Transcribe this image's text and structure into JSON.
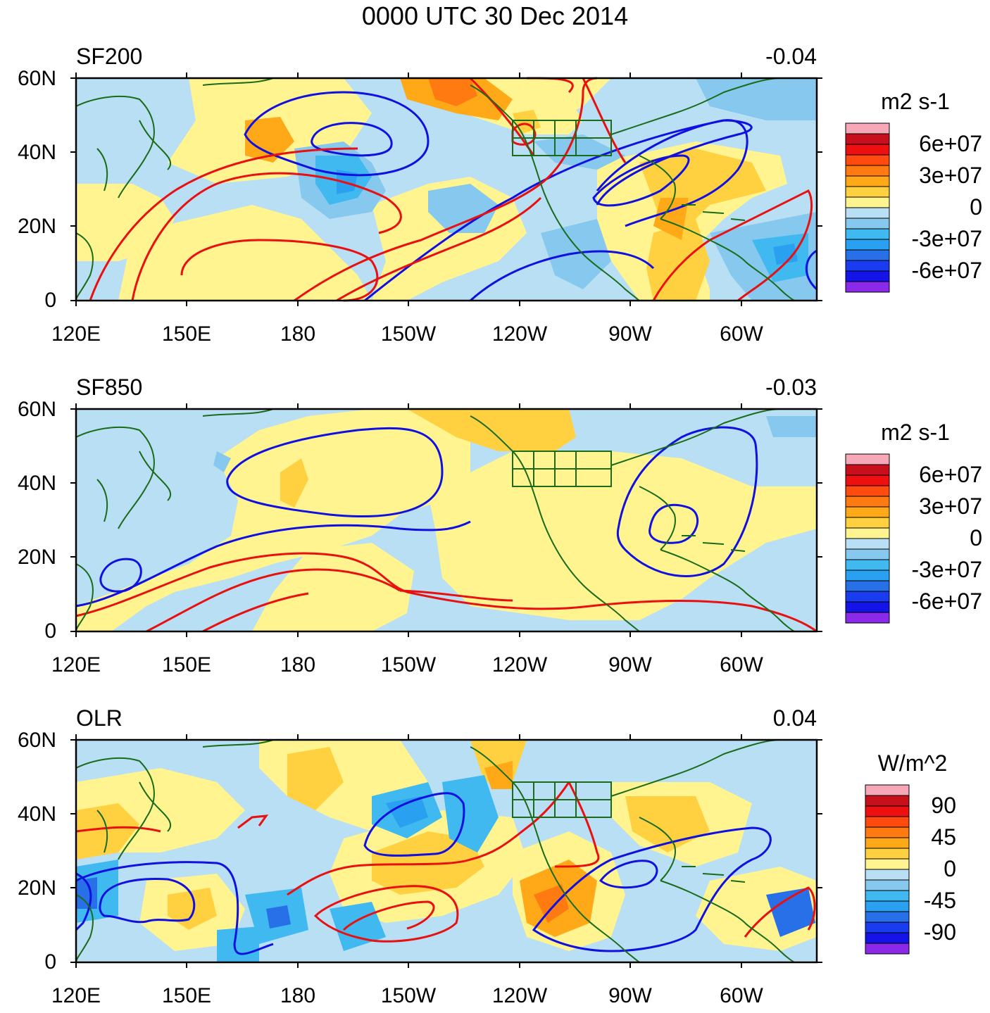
{
  "title": "0000 UTC 30 Dec 2014",
  "axis": {
    "lat_labels": [
      "60N",
      "40N",
      "20N",
      "0"
    ],
    "lon_labels": [
      "120E",
      "150E",
      "180",
      "150W",
      "120W",
      "90W",
      "60W"
    ]
  },
  "panels": [
    {
      "id": "sf200",
      "label": "SF200",
      "correlation": "-0.04",
      "colorbar": {
        "units": "m2 s-1",
        "labels": [
          "6e+07",
          "3e+07",
          "0",
          "-3e+07",
          "-6e+07"
        ]
      }
    },
    {
      "id": "sf850",
      "label": "SF850",
      "correlation": "-0.03",
      "colorbar": {
        "units": "m2 s-1",
        "labels": [
          "6e+07",
          "3e+07",
          "0",
          "-3e+07",
          "-6e+07"
        ]
      }
    },
    {
      "id": "olr",
      "label": "OLR",
      "correlation": "0.04",
      "colorbar": {
        "units": "W/m^2",
        "labels": [
          "90",
          "45",
          "0",
          "-45",
          "-90"
        ]
      }
    }
  ],
  "colors": {
    "contour_positive": "#e81010",
    "contour_negative": "#1010e0",
    "coastline": "#1a6b1a",
    "scale": [
      "#f7a8b8",
      "#c8101c",
      "#ee1010",
      "#ff4a10",
      "#ff7a10",
      "#ffa818",
      "#ffd040",
      "#fff490",
      "#b8dff3",
      "#86c8ee",
      "#40b8f0",
      "#2aa0f0",
      "#2870e8",
      "#1a3cf0",
      "#1414e8",
      "#8a2ae8"
    ]
  }
}
